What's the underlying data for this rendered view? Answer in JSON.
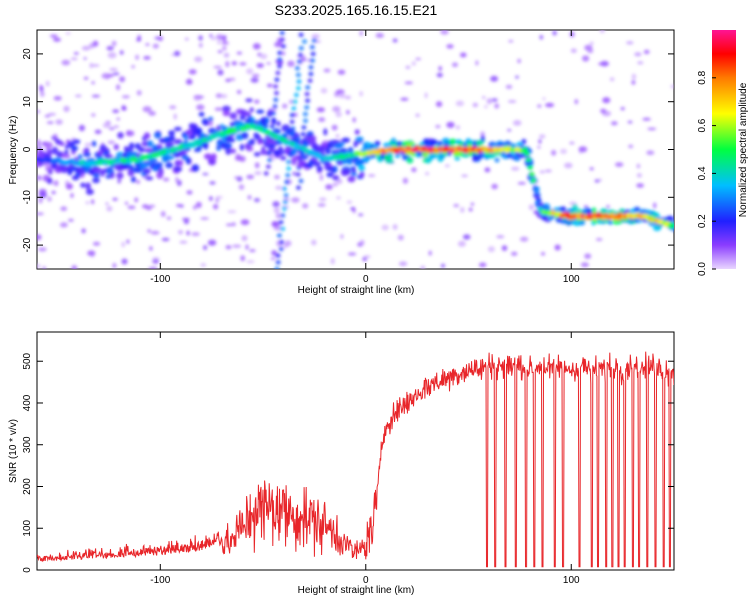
{
  "title": "S233.2025.165.16.15.E21",
  "colors": {
    "snr_line": "#e8262a",
    "frame": "#000000"
  },
  "chart_data": [
    {
      "type": "heatmap",
      "title": "S233.2025.165.16.15.E21",
      "xlabel": "Height of straight line (km)",
      "ylabel": "Frequency (Hz)",
      "xlim": [
        -160,
        150
      ],
      "ylim": [
        -25,
        25
      ],
      "xticks": [
        -100,
        0,
        100
      ],
      "xtick_labels": [
        "-100",
        "0",
        "100"
      ],
      "yticks": [
        20,
        10,
        0,
        -10,
        -20
      ],
      "ytick_labels": [
        "20",
        "10",
        "0",
        "-10",
        "-20"
      ],
      "colorbar": {
        "label": "Normalized spectral amplitude",
        "range": [
          0,
          1
        ],
        "ticks": [
          0.0,
          0.2,
          0.4,
          0.6,
          0.8
        ],
        "tick_labels": [
          "0.0",
          "0.2",
          "0.4",
          "0.6",
          "0.8"
        ]
      },
      "grid": false,
      "ridge": [
        {
          "x": -160,
          "y": -2,
          "amp": 0.2
        },
        {
          "x": -135,
          "y": -3,
          "amp": 0.45
        },
        {
          "x": -110,
          "y": -2,
          "amp": 0.5
        },
        {
          "x": -85,
          "y": 1,
          "amp": 0.45
        },
        {
          "x": -65,
          "y": 4,
          "amp": 0.5
        },
        {
          "x": -55,
          "y": 5,
          "amp": 0.5
        },
        {
          "x": -20,
          "y": -2,
          "amp": 0.4
        },
        {
          "x": -5,
          "y": -1,
          "amp": 0.55
        },
        {
          "x": 15,
          "y": 0,
          "amp": 0.95
        },
        {
          "x": 35,
          "y": 0,
          "amp": 0.95
        },
        {
          "x": 50,
          "y": 0,
          "amp": 0.95
        },
        {
          "x": 65,
          "y": 0,
          "amp": 0.7
        },
        {
          "x": 78,
          "y": 0,
          "amp": 0.6
        },
        {
          "x": 85,
          "y": -13,
          "amp": 0.5
        },
        {
          "x": 100,
          "y": -14,
          "amp": 0.95
        },
        {
          "x": 120,
          "y": -14,
          "amp": 0.9
        },
        {
          "x": 135,
          "y": -14,
          "amp": 0.8
        },
        {
          "x": 150,
          "y": -16,
          "amp": 0.6
        }
      ]
    },
    {
      "type": "line",
      "xlabel": "Height of straight line (km)",
      "ylabel": "SNR (10 * v/v)",
      "xlim": [
        -160,
        150
      ],
      "ylim": [
        0,
        570
      ],
      "xticks": [
        -100,
        0,
        100
      ],
      "xtick_labels": [
        "-100",
        "0",
        "100"
      ],
      "yticks": [
        0,
        100,
        200,
        300,
        400,
        500
      ],
      "ytick_labels": [
        "0",
        "100",
        "200",
        "300",
        "400",
        "500"
      ],
      "grid": false,
      "series": [
        {
          "x": [
            -160,
            -140,
            -120,
            -100,
            -80,
            -65,
            -55,
            -45,
            -35,
            -25,
            -15,
            -5,
            0,
            4,
            6,
            8,
            10,
            15,
            20,
            25,
            30,
            35,
            40,
            45,
            50,
            55,
            60,
            65,
            70,
            75,
            80,
            85,
            90,
            95,
            100,
            105,
            110,
            115,
            120,
            125,
            130,
            135,
            140,
            145,
            150
          ],
          "values": [
            20,
            25,
            30,
            35,
            45,
            70,
            140,
            150,
            130,
            120,
            90,
            40,
            60,
            120,
            200,
            300,
            350,
            380,
            400,
            420,
            440,
            450,
            460,
            470,
            480,
            480,
            490,
            490,
            490,
            490,
            480,
            490,
            480,
            490,
            480,
            490,
            480,
            480,
            490,
            480,
            490,
            480,
            490,
            480,
            470
          ]
        }
      ],
      "dropouts_x": [
        59,
        63,
        68,
        73,
        78,
        82,
        86,
        92,
        96,
        104,
        110,
        113,
        117,
        120,
        123,
        126,
        130,
        133,
        137,
        141,
        145,
        148
      ]
    }
  ]
}
